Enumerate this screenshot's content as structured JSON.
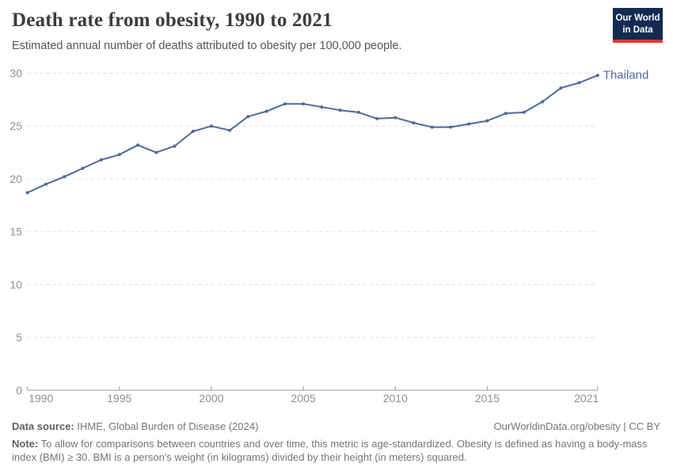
{
  "header": {
    "title": "Death rate from obesity, 1990 to 2021",
    "subtitle": "Estimated annual number of deaths attributed to obesity per 100,000 people.",
    "logo": {
      "line1": "Our World",
      "line2": "in Data"
    }
  },
  "chart_data": {
    "type": "line",
    "title": "Death rate from obesity, 1990 to 2021",
    "xlabel": "",
    "ylabel": "",
    "xlim": [
      1990,
      2021
    ],
    "ylim": [
      0,
      30
    ],
    "x_ticks": [
      1990,
      1995,
      2000,
      2005,
      2010,
      2015,
      2021
    ],
    "y_ticks": [
      0,
      5,
      10,
      15,
      20,
      25,
      30
    ],
    "grid": "horizontal-dashed",
    "legend_position": "end-of-line",
    "series": [
      {
        "name": "Thailand",
        "color": "#4C6A9C",
        "x": [
          1990,
          1991,
          1992,
          1993,
          1994,
          1995,
          1996,
          1997,
          1998,
          1999,
          2000,
          2001,
          2002,
          2003,
          2004,
          2005,
          2006,
          2007,
          2008,
          2009,
          2010,
          2011,
          2012,
          2013,
          2014,
          2015,
          2016,
          2017,
          2018,
          2019,
          2020,
          2021
        ],
        "values": [
          18.7,
          19.5,
          20.2,
          21.0,
          21.8,
          22.3,
          23.2,
          22.5,
          23.1,
          24.5,
          25.0,
          24.6,
          25.9,
          26.4,
          27.1,
          27.1,
          26.8,
          26.5,
          26.3,
          25.7,
          25.8,
          25.3,
          24.9,
          24.9,
          25.2,
          25.5,
          26.2,
          26.3,
          27.3,
          28.6,
          29.1,
          29.8
        ]
      }
    ]
  },
  "footer": {
    "datasource_label": "Data source:",
    "datasource_text": " IHME, Global Burden of Disease (2024)",
    "link_text": "OurWorldinData.org/obesity | CC BY",
    "note_label": "Note:",
    "note_text": " To allow for comparisons between countries and over time, this metric is age-standardized. Obesity is defined as having a body-mass index (BMI) ≥ 30. BMI is a person's weight (in kilograms) divided by their height (in meters) squared."
  },
  "colors": {
    "series_blue": "#4C6A9C",
    "grid_line": "#dcdcdc",
    "axis_line": "#9a9a9a",
    "axis_label": "#8f8f8f",
    "title_text": "#3c3c3c",
    "subtitle_text": "#555555",
    "footer_text": "#757575",
    "logo_bg": "#122b52",
    "logo_accent": "#dc3a34"
  }
}
